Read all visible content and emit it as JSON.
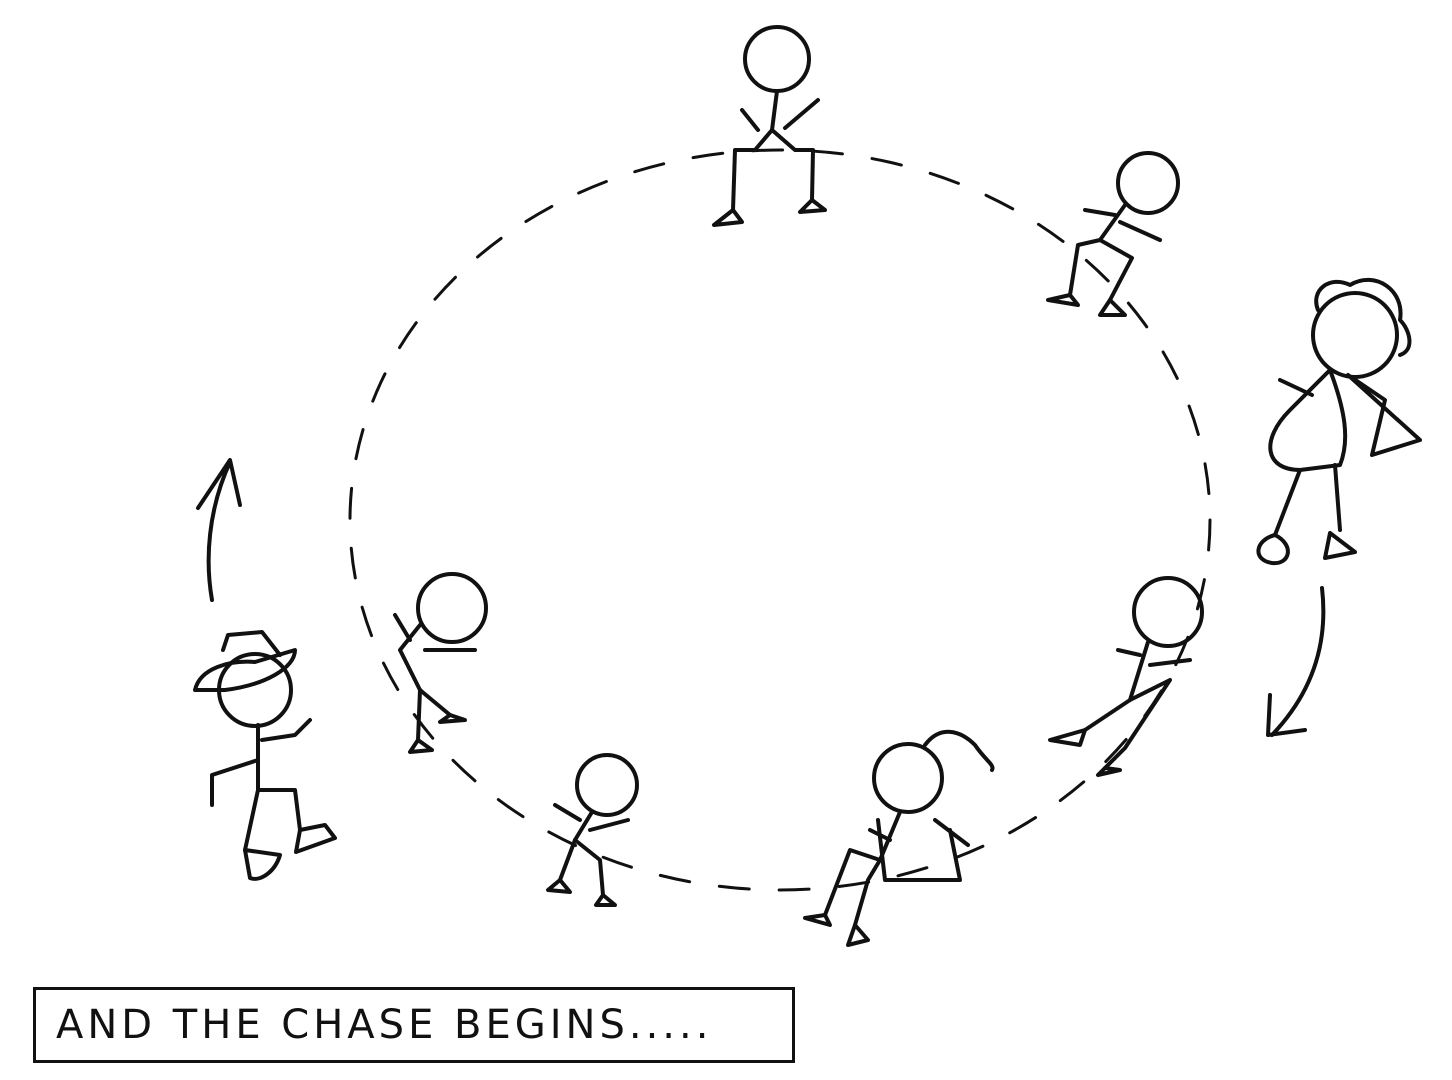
{
  "caption": {
    "text": "AND THE CHASE BEGINS....."
  },
  "colors": {
    "ink": "#111111",
    "paper": "#ffffff"
  },
  "figures": [
    {
      "name": "hat-chaser-figure",
      "description": "stick figure with hat running"
    },
    {
      "name": "ponytail-runner-figure",
      "description": "stick figure with ponytail running"
    },
    {
      "name": "seated-child-top",
      "description": "seated stick figure"
    },
    {
      "name": "seated-child-top-right",
      "description": "seated stick figure"
    },
    {
      "name": "seated-child-right",
      "description": "seated stick figure"
    },
    {
      "name": "seated-girl-bottom",
      "description": "seated stick figure with ponytail and skirt"
    },
    {
      "name": "seated-child-bottom-left",
      "description": "seated stick figure"
    },
    {
      "name": "seated-child-left",
      "description": "seated stick figure"
    }
  ],
  "icons": [
    "up-arrow-icon",
    "down-arrow-icon"
  ]
}
